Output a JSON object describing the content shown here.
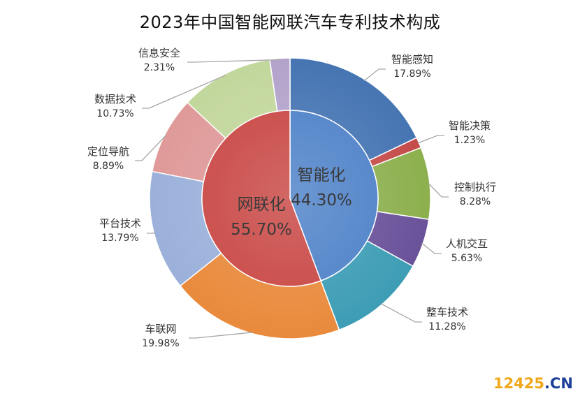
{
  "chart_data": {
    "type": "donut",
    "title": "2023年中国智能网联汽车专利技术构成",
    "inner": [
      {
        "name": "智能化",
        "value": 44.3,
        "label": "44.30%",
        "color": "#4d81c8"
      },
      {
        "name": "网联化",
        "value": 55.7,
        "label": "55.70%",
        "color": "#c84643"
      }
    ],
    "outer": [
      {
        "name": "智能感知",
        "value": 17.89,
        "label": "17.89%",
        "color": "#4675b3"
      },
      {
        "name": "智能决策",
        "value": 1.23,
        "label": "1.23%",
        "color": "#c44c4a"
      },
      {
        "name": "控制执行",
        "value": 8.28,
        "label": "8.28%",
        "color": "#8db04e"
      },
      {
        "name": "人机交互",
        "value": 5.63,
        "label": "5.63%",
        "color": "#6a529a"
      },
      {
        "name": "整车技术",
        "value": 11.28,
        "label": "11.28%",
        "color": "#3d9db5"
      },
      {
        "name": "车联网",
        "value": 19.98,
        "label": "19.98%",
        "color": "#e98a3c"
      },
      {
        "name": "平台技术",
        "value": 13.79,
        "label": "13.79%",
        "color": "#9bb1da"
      },
      {
        "name": "定位导航",
        "value": 8.89,
        "label": "8.89%",
        "color": "#df9a99"
      },
      {
        "name": "数据技术",
        "value": 10.73,
        "label": "10.73%",
        "color": "#c2d79c"
      },
      {
        "name": "信息安全",
        "value": 2.31,
        "label": "2.31%",
        "color": "#b3a3cb"
      }
    ]
  },
  "watermark": {
    "part1": "12425",
    "part2": ".CN"
  }
}
